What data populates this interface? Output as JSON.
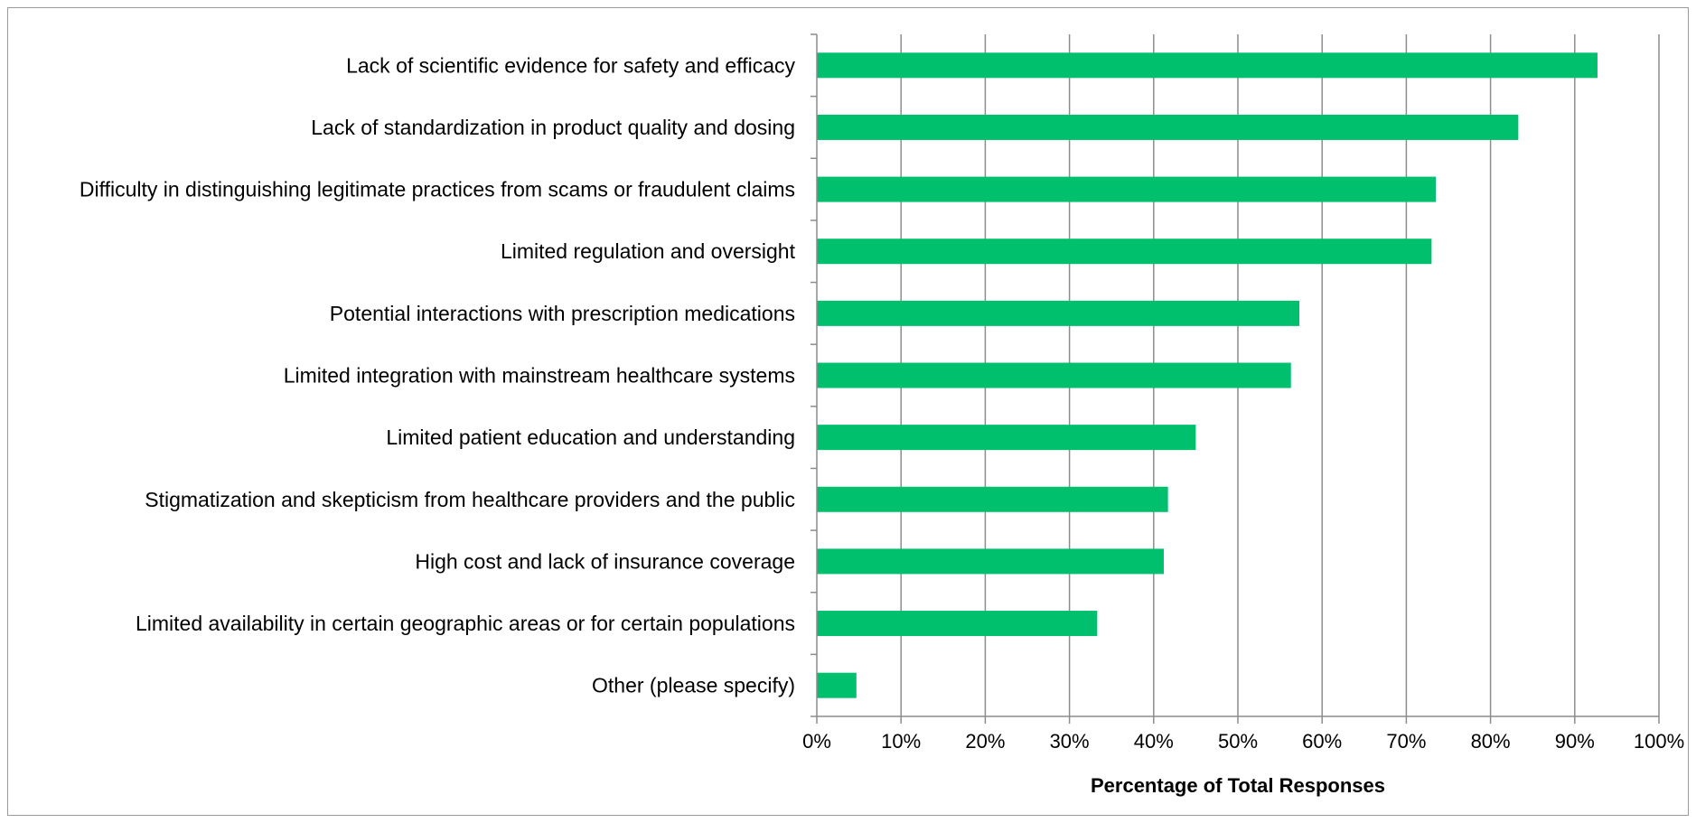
{
  "chart_data": {
    "type": "bar",
    "orientation": "horizontal",
    "title": "",
    "xlabel": "Percentage of Total Responses",
    "ylabel": "",
    "xlim": [
      0,
      100
    ],
    "x_unit": "%",
    "x_ticks": [
      "0%",
      "10%",
      "20%",
      "30%",
      "40%",
      "50%",
      "60%",
      "70%",
      "80%",
      "90%",
      "100%"
    ],
    "grid": "vertical",
    "legend": "none",
    "bar_color": "#00C06E",
    "categories": [
      "Lack of scientific evidence for safety and efficacy",
      "Lack of standardization in product quality and dosing",
      "Difficulty in distinguishing legitimate practices from scams or fraudulent claims",
      "Limited regulation and oversight",
      "Potential interactions with prescription medications",
      "Limited integration with mainstream healthcare systems",
      "Limited patient education and understanding",
      "Stigmatization and skepticism from healthcare providers and the public",
      "High cost and lack of insurance coverage",
      "Limited availability in certain geographic areas or for certain populations",
      "Other (please specify)"
    ],
    "values": [
      92.7,
      83.3,
      73.5,
      73.0,
      57.3,
      56.3,
      45.0,
      41.7,
      41.2,
      33.3,
      4.7
    ]
  }
}
